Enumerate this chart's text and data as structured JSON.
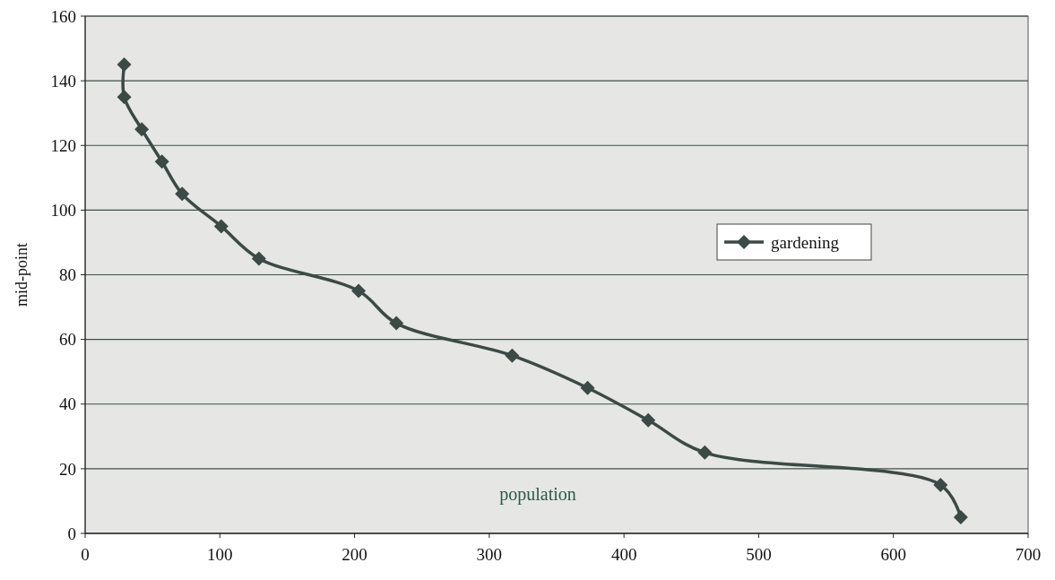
{
  "chart_data": {
    "type": "line",
    "xlabel": "population",
    "ylabel": "mid-point",
    "xlim": [
      0,
      700
    ],
    "xticks": [
      0,
      100,
      200,
      300,
      400,
      500,
      600,
      700
    ],
    "ylim": [
      0,
      160
    ],
    "yticks": [
      0,
      20,
      40,
      60,
      80,
      100,
      120,
      140,
      160
    ],
    "grid": "y",
    "legend": "right",
    "marker": "diamond",
    "line_style": "solid",
    "series": [
      {
        "name": "gardening",
        "color": "#3b4a46",
        "x": [
          29,
          29,
          42,
          57,
          72,
          101,
          129,
          203,
          231,
          317,
          373,
          418,
          460,
          635,
          650
        ],
        "values": [
          145,
          135,
          125,
          115,
          105,
          95,
          85,
          75,
          65,
          55,
          45,
          35,
          25,
          15,
          5
        ]
      }
    ]
  }
}
